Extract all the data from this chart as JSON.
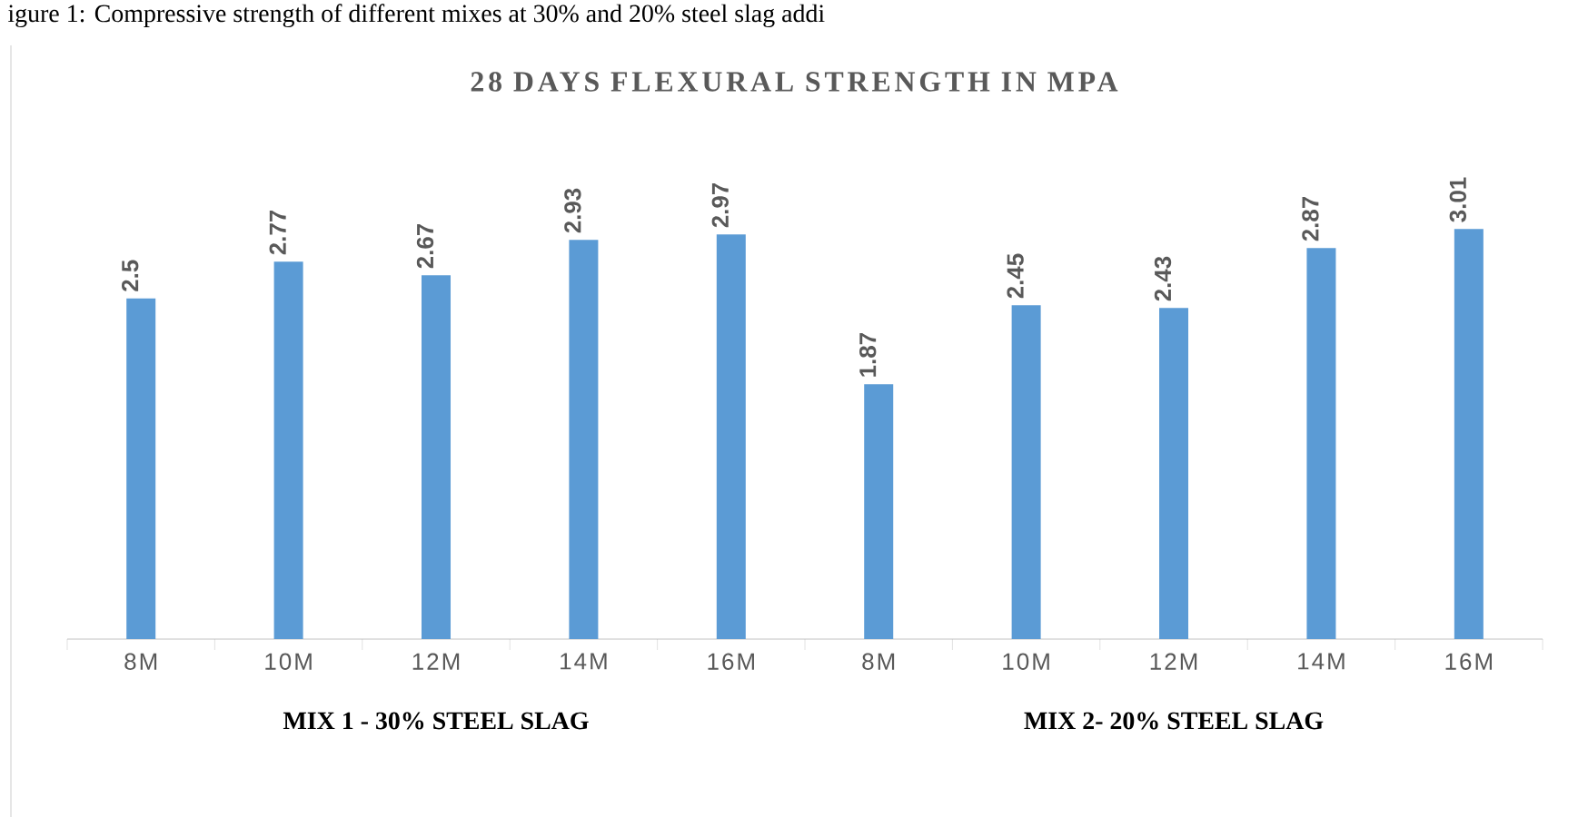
{
  "chart_data": {
    "type": "bar",
    "title": "28 DAYS FLEXURAL STRENGTH IN MPA",
    "categories": [
      "8M",
      "10M",
      "12M",
      "14M",
      "16M",
      "8M",
      "10M",
      "12M",
      "14M",
      "16M"
    ],
    "values": [
      2.5,
      2.77,
      2.67,
      2.93,
      2.97,
      1.87,
      2.45,
      2.43,
      2.87,
      3.01
    ],
    "color": "#5b9bd5",
    "data_labels": true,
    "annotations": [
      "igure 1: Compressive strength of different mixes at 30% and 20% steel slag addi",
      "MIX 1 - 30% STEEL SLAG",
      "MIX 2- 20% STEEL SLAG"
    ]
  }
}
